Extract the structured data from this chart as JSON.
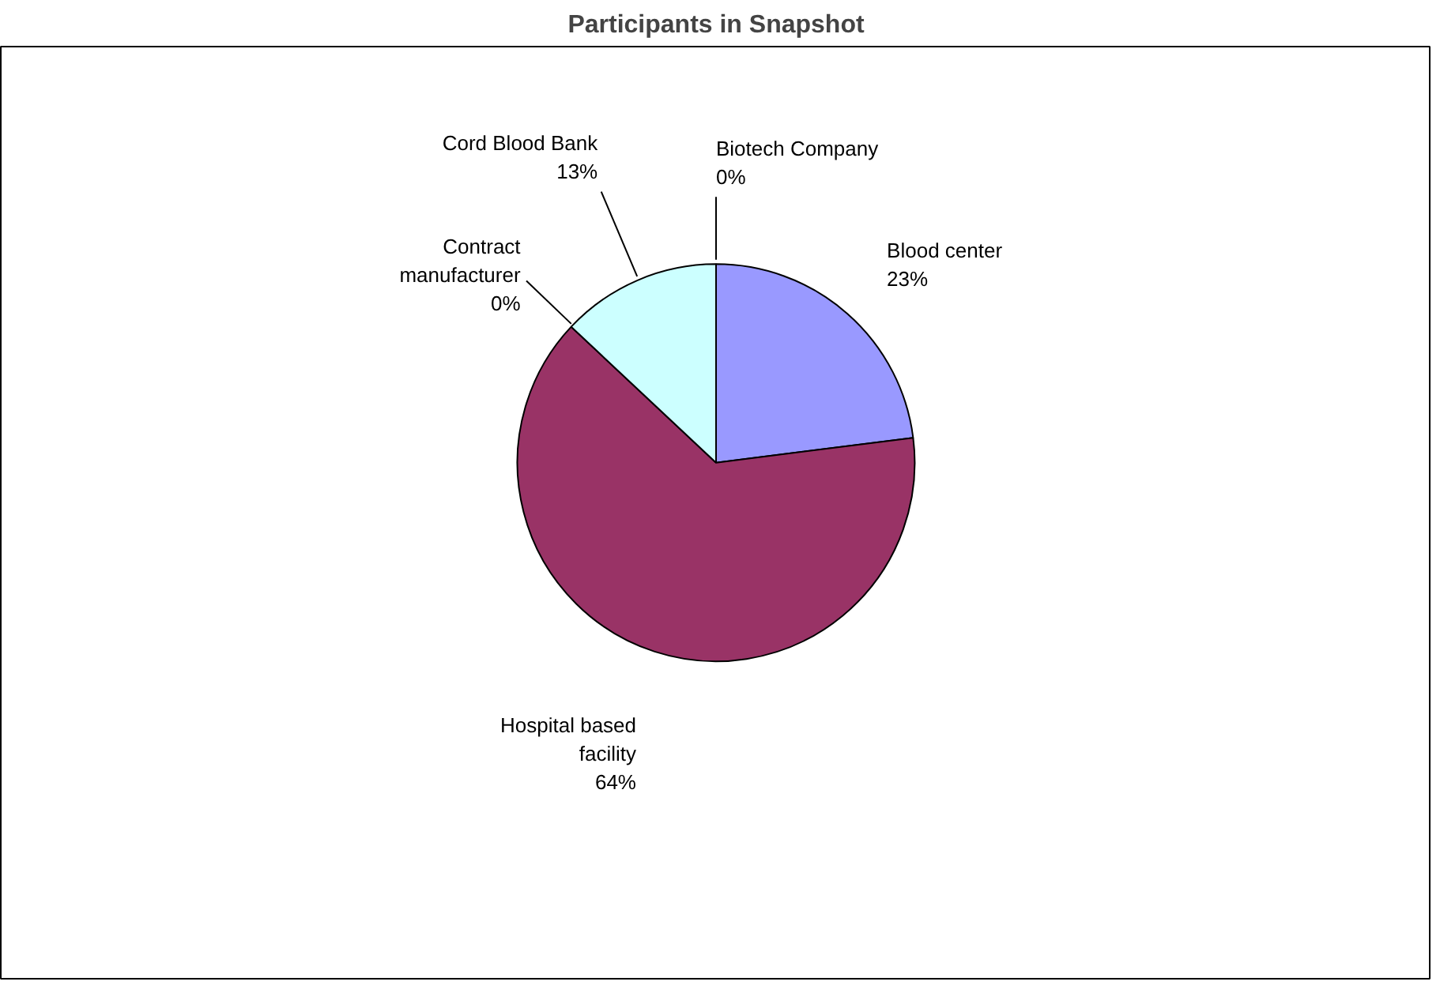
{
  "chart_data": {
    "type": "pie",
    "title": "Participants in Snapshot",
    "categories": [
      "Blood center",
      "Hospital based facility",
      "Contract manufacturer",
      "Cord Blood Bank",
      "Biotech Company"
    ],
    "values": [
      23,
      64,
      0,
      13,
      0
    ],
    "value_labels": [
      "23%",
      "64%",
      "0%",
      "13%",
      "0%"
    ],
    "colors": [
      "#9999ff",
      "#993366",
      "#ffffcc",
      "#ccffff",
      "#660066"
    ]
  }
}
